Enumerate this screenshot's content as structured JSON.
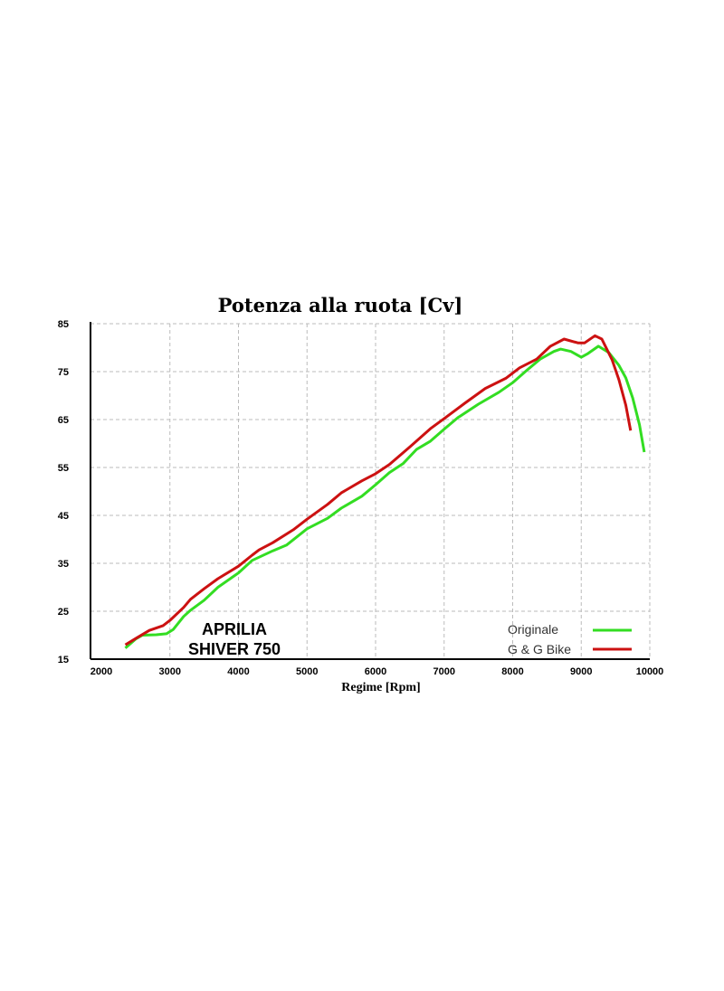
{
  "chart_data": {
    "type": "line",
    "title": "Potenza alla ruota [Cv]",
    "xlabel": "Regime [Rpm]",
    "ylabel": "",
    "xlim": [
      2000,
      10000
    ],
    "ylim": [
      15,
      85
    ],
    "xticks": [
      2000,
      3000,
      4000,
      5000,
      6000,
      7000,
      8000,
      9000,
      10000
    ],
    "yticks": [
      15,
      25,
      35,
      45,
      55,
      65,
      75,
      85
    ],
    "grid": true,
    "legend_position": "bottom-right",
    "annotation": [
      "APRILIA",
      "SHIVER 750"
    ],
    "series": [
      {
        "name": "Originale",
        "color": "#33dd22",
        "x": [
          2350,
          2500,
          2600,
          2800,
          2950,
          3050,
          3200,
          3300,
          3500,
          3700,
          4000,
          4200,
          4500,
          4700,
          5000,
          5300,
          5500,
          5800,
          6000,
          6200,
          6400,
          6600,
          6800,
          7000,
          7200,
          7500,
          7800,
          8000,
          8200,
          8400,
          8600,
          8700,
          8850,
          9000,
          9100,
          9250,
          9400,
          9550,
          9650,
          9750,
          9850,
          9920
        ],
        "y": [
          17.3,
          19.2,
          20,
          20.1,
          20.3,
          21.2,
          23.9,
          25.2,
          27.3,
          30,
          33,
          35.6,
          37.6,
          38.8,
          42.2,
          44.4,
          46.5,
          49,
          51.4,
          53.9,
          55.8,
          58.8,
          60.5,
          63,
          65.4,
          68.2,
          70.7,
          72.7,
          75.2,
          77.6,
          79.2,
          79.7,
          79.2,
          78,
          78.8,
          80.3,
          79,
          76.3,
          73.7,
          69.5,
          63.9,
          58.2
        ]
      },
      {
        "name": "G & G Bike",
        "color": "#cc1111",
        "x": [
          2350,
          2500,
          2700,
          2900,
          3000,
          3200,
          3300,
          3500,
          3700,
          4000,
          4200,
          4300,
          4500,
          4800,
          5000,
          5300,
          5500,
          5800,
          6000,
          6200,
          6500,
          6800,
          7000,
          7300,
          7600,
          7900,
          8100,
          8350,
          8550,
          8750,
          8950,
          9050,
          9200,
          9300,
          9450,
          9550,
          9650,
          9720
        ],
        "y": [
          18,
          19.3,
          21,
          22,
          23.1,
          25.8,
          27.5,
          29.7,
          31.8,
          34.4,
          36.7,
          37.8,
          39.3,
          42,
          44.2,
          47.3,
          49.7,
          52.2,
          53.7,
          55.6,
          59.3,
          63.1,
          65.2,
          68.4,
          71.5,
          73.6,
          75.8,
          77.6,
          80.3,
          81.8,
          81,
          81,
          82.5,
          81.8,
          77.5,
          73.3,
          68,
          62.7
        ]
      }
    ]
  }
}
